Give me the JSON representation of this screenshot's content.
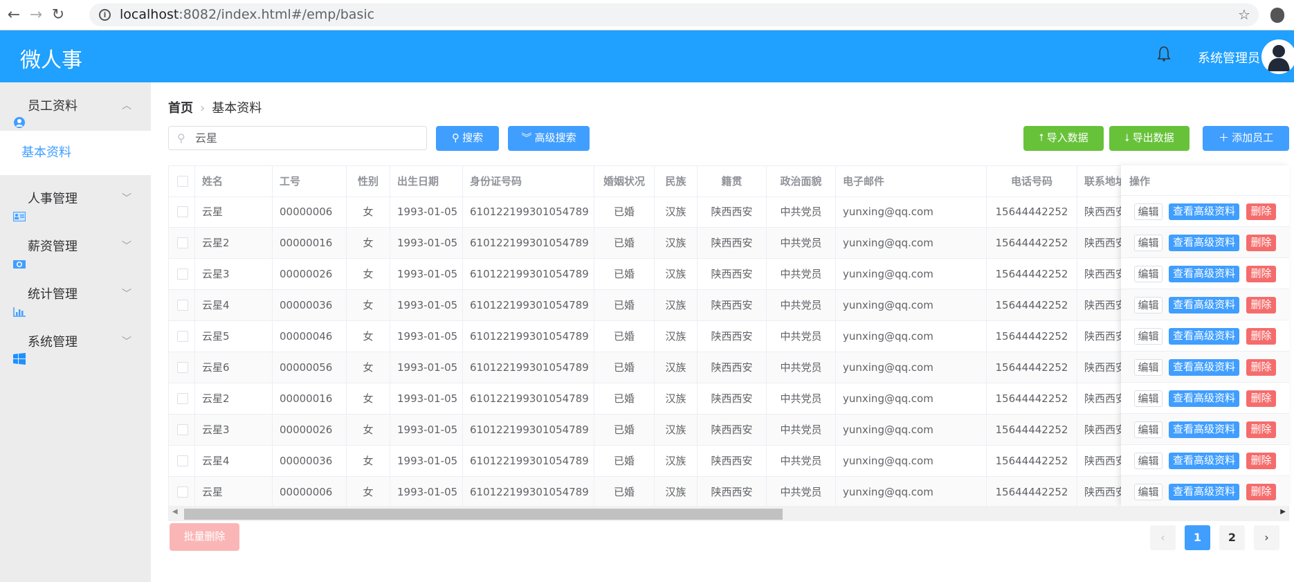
{
  "browser": {
    "url_host": "localhost",
    "url_rest": ":8082/index.html#/emp/basic",
    "back": "←",
    "forward": "→",
    "reload": "↻",
    "star": "☆"
  },
  "header": {
    "title": "微人事",
    "user": "系统管理员",
    "color": "#20a0ff"
  },
  "sidebar": {
    "groups": [
      {
        "label": "员工资料",
        "icon": "user-circle-icon",
        "expanded": true,
        "items": [
          {
            "label": "基本资料",
            "active": true
          }
        ]
      },
      {
        "label": "人事管理",
        "icon": "id-card-icon"
      },
      {
        "label": "薪资管理",
        "icon": "money-icon"
      },
      {
        "label": "统计管理",
        "icon": "bar-chart-icon"
      },
      {
        "label": "系统管理",
        "icon": "windows-icon"
      }
    ]
  },
  "breadcrumb": {
    "home": "首页",
    "current": "基本资料"
  },
  "toolbar": {
    "search_value": "云星",
    "search": "搜索",
    "advanced": "高级搜索",
    "import": "导入数据",
    "export": "导出数据",
    "add": "添加员工"
  },
  "table": {
    "columns": [
      "姓名",
      "工号",
      "性别",
      "出生日期",
      "身份证号码",
      "婚姻状况",
      "民族",
      "籍贯",
      "政治面貌",
      "电子邮件",
      "电话号码",
      "联系地址"
    ],
    "action_header": "操作",
    "actions": {
      "edit": "编辑",
      "view": "查看高级资料",
      "delete": "删除"
    },
    "rows": [
      [
        "云星",
        "00000006",
        "女",
        "1993-01-05",
        "610122199301054789",
        "已婚",
        "汉族",
        "陕西西安",
        "中共党员",
        "yunxing@qq.com",
        "15644442252",
        "陕西西安"
      ],
      [
        "云星2",
        "00000016",
        "女",
        "1993-01-05",
        "610122199301054789",
        "已婚",
        "汉族",
        "陕西西安",
        "中共党员",
        "yunxing@qq.com",
        "15644442252",
        "陕西西安"
      ],
      [
        "云星3",
        "00000026",
        "女",
        "1993-01-05",
        "610122199301054789",
        "已婚",
        "汉族",
        "陕西西安",
        "中共党员",
        "yunxing@qq.com",
        "15644442252",
        "陕西西安"
      ],
      [
        "云星4",
        "00000036",
        "女",
        "1993-01-05",
        "610122199301054789",
        "已婚",
        "汉族",
        "陕西西安",
        "中共党员",
        "yunxing@qq.com",
        "15644442252",
        "陕西西安"
      ],
      [
        "云星5",
        "00000046",
        "女",
        "1993-01-05",
        "610122199301054789",
        "已婚",
        "汉族",
        "陕西西安",
        "中共党员",
        "yunxing@qq.com",
        "15644442252",
        "陕西西安"
      ],
      [
        "云星6",
        "00000056",
        "女",
        "1993-01-05",
        "610122199301054789",
        "已婚",
        "汉族",
        "陕西西安",
        "中共党员",
        "yunxing@qq.com",
        "15644442252",
        "陕西西安"
      ],
      [
        "云星2",
        "00000016",
        "女",
        "1993-01-05",
        "610122199301054789",
        "已婚",
        "汉族",
        "陕西西安",
        "中共党员",
        "yunxing@qq.com",
        "15644442252",
        "陕西西安"
      ],
      [
        "云星3",
        "00000026",
        "女",
        "1993-01-05",
        "610122199301054789",
        "已婚",
        "汉族",
        "陕西西安",
        "中共党员",
        "yunxing@qq.com",
        "15644442252",
        "陕西西安"
      ],
      [
        "云星4",
        "00000036",
        "女",
        "1993-01-05",
        "610122199301054789",
        "已婚",
        "汉族",
        "陕西西安",
        "中共党员",
        "yunxing@qq.com",
        "15644442252",
        "陕西西安"
      ],
      [
        "云星",
        "00000006",
        "女",
        "1993-01-05",
        "610122199301054789",
        "已婚",
        "汉族",
        "陕西西安",
        "中共党员",
        "yunxing@qq.com",
        "15644442252",
        "陕西西安"
      ]
    ]
  },
  "footer": {
    "batch_delete": "批量删除",
    "pages": [
      "1",
      "2"
    ],
    "current_page": "1",
    "prev": "‹",
    "next": "›"
  }
}
